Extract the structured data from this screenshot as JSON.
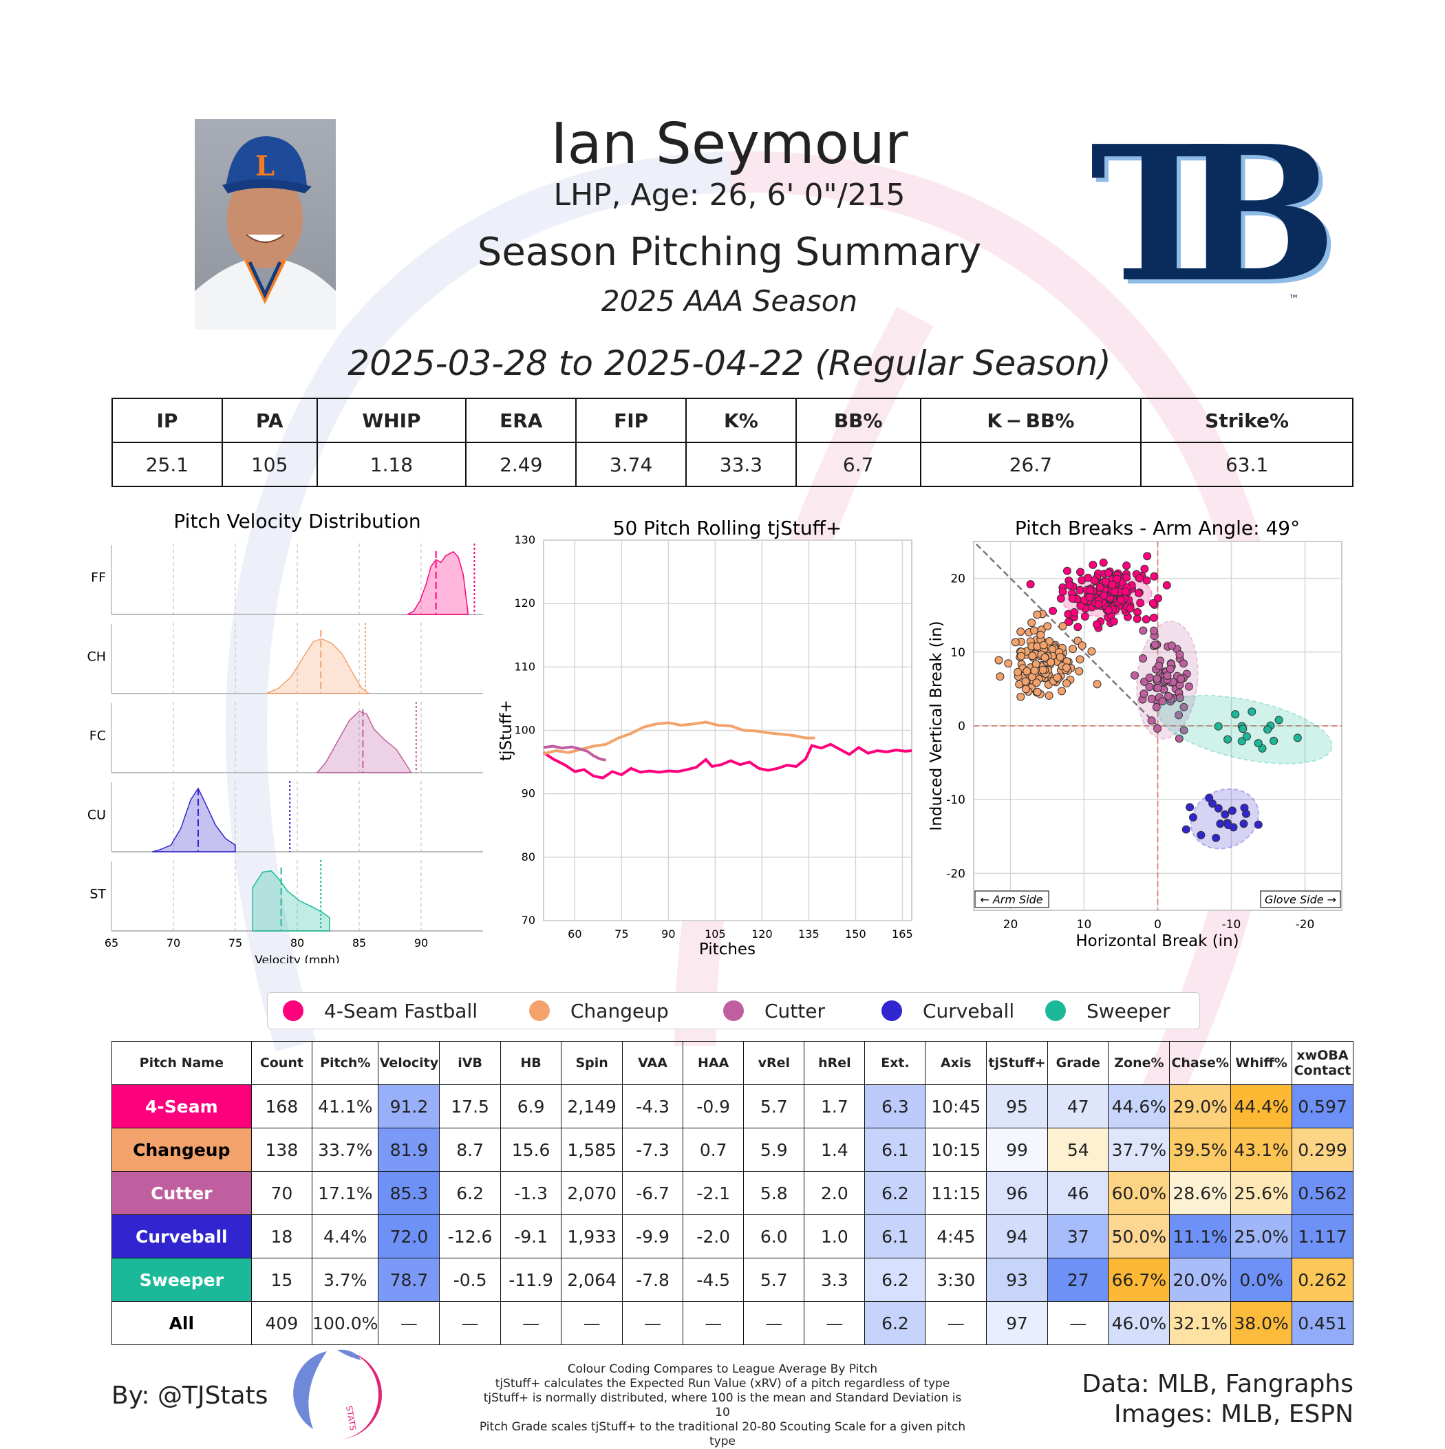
{
  "header": {
    "name": "Ian Seymour",
    "bio": "LHP, Age: 26, 6' 0\"/215",
    "summary_title": "Season Pitching Summary",
    "season": "2025 AAA Season",
    "date_range": "2025-03-28 to 2025-04-22 (Regular Season)",
    "team_logo_text": "TB",
    "team_logo_tm": "™"
  },
  "season_stats": {
    "headers": [
      "IP",
      "PA",
      "WHIP",
      "ERA",
      "FIP",
      "K%",
      "BB%",
      "K − BB%",
      "Strike%"
    ],
    "values": [
      "25.1",
      "105",
      "1.18",
      "2.49",
      "3.74",
      "33.3",
      "6.7",
      "26.7",
      "63.1"
    ]
  },
  "legend": [
    {
      "label": "4-Seam Fastball",
      "color": "#ff007d"
    },
    {
      "label": "Changeup",
      "color": "#f4a26c"
    },
    {
      "label": "Cutter",
      "color": "#c05fa0"
    },
    {
      "label": "Curveball",
      "color": "#3025ce"
    },
    {
      "label": "Sweeper",
      "color": "#1bb999"
    }
  ],
  "chart_data": [
    {
      "type": "area",
      "title": "Pitch Velocity Distribution",
      "xlabel": "Velocity (mph)",
      "xlim": [
        65,
        95
      ],
      "xticks": [
        65,
        70,
        75,
        80,
        85,
        90
      ],
      "rows": [
        {
          "label": "FF",
          "color": "#ff007d",
          "mean": 91.2,
          "league_mean": 94.3,
          "curve": [
            [
              88.9,
              0
            ],
            [
              89.4,
              0.05
            ],
            [
              89.9,
              0.2
            ],
            [
              90.4,
              0.45
            ],
            [
              90.8,
              0.72
            ],
            [
              91.2,
              0.82
            ],
            [
              91.6,
              0.78
            ],
            [
              92.0,
              0.88
            ],
            [
              92.6,
              0.94
            ],
            [
              93.0,
              0.86
            ],
            [
              93.4,
              0.6
            ],
            [
              93.8,
              0
            ]
          ]
        },
        {
          "label": "CH",
          "color": "#f4a26c",
          "mean": 81.9,
          "league_mean": 85.5,
          "curve": [
            [
              77.5,
              0
            ],
            [
              78.5,
              0.08
            ],
            [
              79.5,
              0.25
            ],
            [
              80.5,
              0.55
            ],
            [
              81.3,
              0.78
            ],
            [
              82.0,
              0.82
            ],
            [
              82.8,
              0.75
            ],
            [
              83.6,
              0.6
            ],
            [
              84.5,
              0.3
            ],
            [
              85.2,
              0.08
            ],
            [
              85.8,
              0
            ]
          ]
        },
        {
          "label": "FC",
          "color": "#c05fa0",
          "mean": 85.3,
          "league_mean": 89.6,
          "curve": [
            [
              81.6,
              0
            ],
            [
              82.3,
              0.15
            ],
            [
              83.2,
              0.45
            ],
            [
              84.2,
              0.78
            ],
            [
              85.0,
              0.92
            ],
            [
              85.6,
              0.88
            ],
            [
              86.2,
              0.65
            ],
            [
              87.0,
              0.5
            ],
            [
              88.0,
              0.35
            ],
            [
              88.8,
              0.12
            ],
            [
              89.2,
              0
            ]
          ]
        },
        {
          "label": "CU",
          "color": "#3025ce",
          "mean": 72.0,
          "league_mean": 79.4,
          "curve": [
            [
              68.3,
              0
            ],
            [
              68.9,
              0.03
            ],
            [
              69.8,
              0.1
            ],
            [
              70.6,
              0.35
            ],
            [
              71.4,
              0.78
            ],
            [
              72.0,
              0.95
            ],
            [
              72.6,
              0.72
            ],
            [
              73.4,
              0.4
            ],
            [
              74.2,
              0.2
            ],
            [
              75.0,
              0.1
            ],
            [
              75.0,
              0
            ]
          ]
        },
        {
          "label": "ST",
          "color": "#1bb999",
          "mean": 78.7,
          "league_mean": 81.9,
          "curve": [
            [
              76.4,
              0
            ],
            [
              76.4,
              0.65
            ],
            [
              77.2,
              0.88
            ],
            [
              77.9,
              0.9
            ],
            [
              78.5,
              0.78
            ],
            [
              79.2,
              0.6
            ],
            [
              80.2,
              0.45
            ],
            [
              81.2,
              0.36
            ],
            [
              82.0,
              0.28
            ],
            [
              82.6,
              0.2
            ],
            [
              82.6,
              0
            ]
          ]
        }
      ]
    },
    {
      "type": "line",
      "title": "50 Pitch Rolling tjStuff+",
      "xlabel": "Pitches",
      "ylabel": "tjStuff+",
      "xlim": [
        50,
        168
      ],
      "ylim": [
        70,
        130
      ],
      "xticks": [
        60,
        75,
        90,
        105,
        120,
        135,
        150,
        165
      ],
      "yticks": [
        70,
        80,
        90,
        100,
        110,
        120,
        130
      ],
      "series": [
        {
          "name": "4-Seam Fastball",
          "color": "#ff007d",
          "points": [
            [
              50,
              96.5
            ],
            [
              53,
              95.5
            ],
            [
              57,
              94.5
            ],
            [
              60,
              93.5
            ],
            [
              63,
              93.8
            ],
            [
              66,
              92.8
            ],
            [
              69,
              92.5
            ],
            [
              72,
              93.5
            ],
            [
              75,
              93.0
            ],
            [
              78,
              94.0
            ],
            [
              81,
              93.4
            ],
            [
              84,
              93.6
            ],
            [
              87,
              93.4
            ],
            [
              90,
              93.6
            ],
            [
              93,
              93.5
            ],
            [
              96,
              93.8
            ],
            [
              99,
              94.2
            ],
            [
              102,
              95.4
            ],
            [
              104,
              94.3
            ],
            [
              107,
              94.6
            ],
            [
              110,
              95.2
            ],
            [
              113,
              94.6
            ],
            [
              116,
              95.0
            ],
            [
              119,
              94.0
            ],
            [
              122,
              93.7
            ],
            [
              125,
              94.0
            ],
            [
              128,
              94.5
            ],
            [
              131,
              94.3
            ],
            [
              134,
              95.5
            ],
            [
              136,
              97.6
            ],
            [
              139,
              97.2
            ],
            [
              142,
              97.8
            ],
            [
              145,
              97.0
            ],
            [
              148,
              96.2
            ],
            [
              151,
              97.3
            ],
            [
              154,
              96.4
            ],
            [
              157,
              96.8
            ],
            [
              160,
              96.6
            ],
            [
              163,
              96.9
            ],
            [
              166,
              96.7
            ],
            [
              168,
              96.8
            ]
          ]
        },
        {
          "name": "Changeup",
          "color": "#f4a26c",
          "points": [
            [
              50,
              96.3
            ],
            [
              54,
              96.8
            ],
            [
              58,
              96.5
            ],
            [
              62,
              97.0
            ],
            [
              66,
              97.5
            ],
            [
              70,
              97.8
            ],
            [
              74,
              98.8
            ],
            [
              78,
              99.5
            ],
            [
              82,
              100.5
            ],
            [
              86,
              101.0
            ],
            [
              90,
              101.2
            ],
            [
              94,
              100.8
            ],
            [
              98,
              101.0
            ],
            [
              102,
              101.3
            ],
            [
              106,
              100.8
            ],
            [
              110,
              100.7
            ],
            [
              114,
              100.0
            ],
            [
              118,
              99.9
            ],
            [
              122,
              99.6
            ],
            [
              126,
              99.4
            ],
            [
              130,
              99.2
            ],
            [
              134,
              98.8
            ],
            [
              137,
              98.8
            ]
          ]
        },
        {
          "name": "Cutter",
          "color": "#c05fa0",
          "points": [
            [
              50,
              97.3
            ],
            [
              53,
              97.5
            ],
            [
              56,
              97.2
            ],
            [
              59,
              97.4
            ],
            [
              62,
              97.0
            ],
            [
              64,
              96.7
            ],
            [
              66,
              96.0
            ],
            [
              68,
              95.5
            ],
            [
              70,
              95.3
            ]
          ]
        }
      ]
    },
    {
      "type": "scatter",
      "title": "Pitch Breaks - Arm Angle: 49°",
      "xlabel": "Horizontal Break (in)",
      "ylabel": "Induced Vertical Break (in)",
      "xlim": [
        25,
        -25
      ],
      "ylim": [
        -25,
        25
      ],
      "xticks": [
        20,
        10,
        0,
        -10,
        -20
      ],
      "yticks": [
        20,
        10,
        0,
        -10,
        -20
      ],
      "annotations": [
        "← Arm Side",
        "Glove Side →"
      ],
      "groups": [
        {
          "name": "4-Seam Fastball",
          "color": "#ff007d",
          "center": [
            6.9,
            17.5
          ],
          "spread": [
            3.0,
            2.0
          ],
          "count": 168,
          "ellipse": [
            12.2,
            5.2
          ]
        },
        {
          "name": "Changeup",
          "color": "#f4a26c",
          "center": [
            15.6,
            8.7
          ],
          "spread": [
            2.4,
            2.2
          ],
          "count": 138,
          "ellipse": null
        },
        {
          "name": "Cutter",
          "color": "#c05fa0",
          "center": [
            -1.3,
            6.2
          ],
          "spread": [
            1.5,
            2.6
          ],
          "count": 70,
          "ellipse": [
            8.2,
            16.0
          ]
        },
        {
          "name": "Curveball",
          "color": "#3025ce",
          "center": [
            -9.1,
            -12.6
          ],
          "spread": [
            2.3,
            2.0
          ],
          "count": 18,
          "ellipse": [
            9.5,
            7.8
          ]
        },
        {
          "name": "Sweeper",
          "color": "#1bb999",
          "center": [
            -11.9,
            -0.5
          ],
          "spread": [
            4.0,
            1.5
          ],
          "count": 15,
          "ellipse": [
            24.0,
            8.0
          ]
        }
      ]
    }
  ],
  "pitch_table": {
    "headers": [
      "Pitch Name",
      "Count",
      "Pitch%",
      "Velocity",
      "iVB",
      "HB",
      "Spin",
      "VAA",
      "HAA",
      "vRel",
      "hRel",
      "Ext.",
      "Axis",
      "tjStuff+",
      "Grade",
      "Zone%",
      "Chase%",
      "Whiff%",
      "xwOBA\nContact"
    ],
    "rows": [
      {
        "name": "4-Seam",
        "name_color": "#ff007d",
        "cells": [
          "168",
          "41.1%",
          "91.2",
          "17.5",
          "6.9",
          "2,149",
          "-4.3",
          "-0.9",
          "5.7",
          "1.7",
          "6.3",
          "10:45",
          "95",
          "47",
          "44.6%",
          "29.0%",
          "44.4%",
          "0.597"
        ],
        "fills": [
          "",
          "",
          "#98b0f9",
          "",
          "",
          "",
          "",
          "",
          "",
          "",
          "#bccbfb",
          "",
          "#dfe6fc",
          "#dfe6fc",
          "#c8d5fb",
          "#fdd17b",
          "#fdb933",
          "#6c90f7"
        ]
      },
      {
        "name": "Changeup",
        "name_color": "#f4a26c",
        "cells": [
          "138",
          "33.7%",
          "81.9",
          "8.7",
          "15.6",
          "1,585",
          "-7.3",
          "0.7",
          "5.9",
          "1.4",
          "6.1",
          "10:15",
          "99",
          "54",
          "37.7%",
          "39.5%",
          "43.1%",
          "0.299"
        ],
        "fills": [
          "",
          "",
          "#7b9af8",
          "",
          "",
          "",
          "",
          "",
          "",
          "",
          "#c6d3fb",
          "",
          "#f5f7fe",
          "#fef1d1",
          "#dfe6fc",
          "#fdcb66",
          "#fdc453",
          "#fdd586"
        ],
        "dark_name": true
      },
      {
        "name": "Cutter",
        "name_color": "#c05fa0",
        "cells": [
          "70",
          "17.1%",
          "85.3",
          "6.2",
          "-1.3",
          "2,070",
          "-6.7",
          "-2.1",
          "5.8",
          "2.0",
          "6.2",
          "11:15",
          "96",
          "46",
          "60.0%",
          "28.6%",
          "25.6%",
          "0.562"
        ],
        "fills": [
          "",
          "",
          "#6e91f7",
          "",
          "",
          "",
          "",
          "",
          "",
          "",
          "#c6d3fb",
          "",
          "#dbe3fc",
          "#dbe3fc",
          "#fdd483",
          "#fdf1d4",
          "#fee9b6",
          "#6e91f7"
        ]
      },
      {
        "name": "Curveball",
        "name_color": "#3025ce",
        "cells": [
          "18",
          "4.4%",
          "72.0",
          "-12.6",
          "-9.1",
          "1,933",
          "-9.9",
          "-2.0",
          "6.0",
          "1.0",
          "6.1",
          "4:45",
          "94",
          "37",
          "50.0%",
          "11.1%",
          "25.0%",
          "1.117"
        ],
        "fills": [
          "",
          "",
          "#6e91f7",
          "",
          "",
          "",
          "",
          "",
          "",
          "",
          "#c6d3fb",
          "",
          "#d2ddfb",
          "#a7bcfa",
          "#fdd791",
          "#6e91f7",
          "#9fb6f9",
          "#6e91f7"
        ]
      },
      {
        "name": "Sweeper",
        "name_color": "#1bb999",
        "cells": [
          "15",
          "3.7%",
          "78.7",
          "-0.5",
          "-11.9",
          "2,064",
          "-7.8",
          "-4.5",
          "5.7",
          "3.3",
          "6.2",
          "3:30",
          "93",
          "27",
          "66.7%",
          "20.0%",
          "0.0%",
          "0.262"
        ],
        "fills": [
          "",
          "",
          "#7b9af8",
          "",
          "",
          "",
          "",
          "",
          "",
          "",
          "#d7e0fc",
          "",
          "#c8d5fb",
          "#6e91f7",
          "#fdb935",
          "#a9bdfa",
          "#6e91f7",
          "#fdc859"
        ]
      },
      {
        "name": "All",
        "name_color": "#ffffff",
        "cells": [
          "409",
          "100.0%",
          "—",
          "—",
          "—",
          "—",
          "—",
          "—",
          "—",
          "—",
          "6.2",
          "—",
          "97",
          "—",
          "46.0%",
          "32.1%",
          "38.0%",
          "0.451"
        ],
        "fills": [
          "",
          "",
          "",
          "",
          "",
          "",
          "",
          "",
          "",
          "",
          "#c6d3fb",
          "",
          "#e8eefd",
          "",
          "#d5dffc",
          "#fee2a3",
          "#fdbb3b",
          "#93acf9"
        ],
        "dark_name": true
      }
    ]
  },
  "footer": {
    "byline": "By: @TJStats",
    "logo_text": "STATS",
    "notes": [
      "Colour Coding Compares to League Average By Pitch",
      "tjStuff+ calculates the Expected Run Value (xRV) of a pitch regardless of type",
      "tjStuff+ is normally distributed, where 100 is the mean and Standard Deviation is 10",
      "Pitch Grade scales tjStuff+ to the traditional 20-80 Scouting Scale for a given pitch type"
    ],
    "data_source": "Data: MLB, Fangraphs",
    "images_source": "Images: MLB, ESPN"
  }
}
